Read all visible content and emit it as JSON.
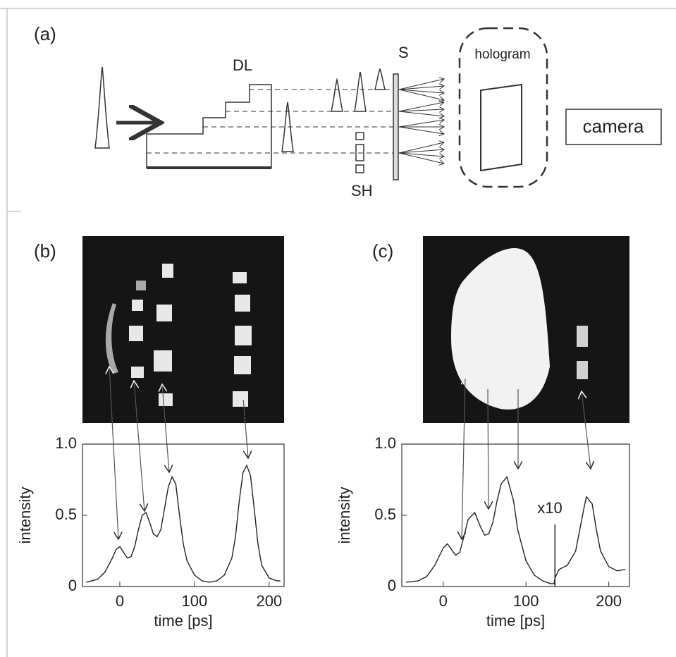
{
  "diagram": {
    "label": "(a)",
    "delay_line": "DL",
    "screen": "S",
    "hologram": "hologram",
    "camera": "camera",
    "shutter": "SH"
  },
  "panel_labels": [
    "(b)",
    "(c)"
  ],
  "chart_data": [
    {
      "type": "line",
      "x_label": "time [ps]",
      "y_label": "intensity",
      "x": [
        -45,
        -30,
        -20,
        -10,
        -5,
        0,
        5,
        10,
        15,
        20,
        25,
        30,
        35,
        40,
        45,
        50,
        55,
        60,
        65,
        70,
        75,
        80,
        85,
        90,
        100,
        110,
        120,
        130,
        140,
        150,
        155,
        160,
        165,
        170,
        175,
        180,
        185,
        190,
        200,
        210,
        215
      ],
      "series": [
        {
          "color": "#222222",
          "values": [
            0.03,
            0.05,
            0.1,
            0.2,
            0.26,
            0.28,
            0.24,
            0.2,
            0.21,
            0.28,
            0.4,
            0.5,
            0.52,
            0.45,
            0.37,
            0.35,
            0.4,
            0.55,
            0.7,
            0.77,
            0.72,
            0.5,
            0.3,
            0.18,
            0.08,
            0.04,
            0.03,
            0.04,
            0.08,
            0.2,
            0.35,
            0.6,
            0.8,
            0.85,
            0.78,
            0.55,
            0.3,
            0.15,
            0.06,
            0.04,
            0.04
          ]
        }
      ],
      "xlim": [
        -50,
        220
      ],
      "xticks": [
        0,
        100,
        200
      ],
      "ylim": [
        0,
        1
      ],
      "yticks": [
        0,
        0.5,
        {
          "value": 1,
          "label": "1.0"
        }
      ]
    },
    {
      "type": "line",
      "x_label": "time [ps]",
      "y_label": "intensity",
      "annotation": "x10",
      "x": [
        -45,
        -30,
        -20,
        -10,
        0,
        5,
        10,
        15,
        20,
        25,
        30,
        38,
        45,
        50,
        55,
        60,
        65,
        70,
        77,
        85,
        90,
        100,
        110,
        120,
        130,
        134,
        135,
        140,
        150,
        160,
        165,
        170,
        173,
        180,
        185,
        190,
        200,
        210,
        220
      ],
      "series": [
        {
          "color": "#222222",
          "values": [
            0.03,
            0.04,
            0.07,
            0.15,
            0.27,
            0.3,
            0.26,
            0.22,
            0.24,
            0.35,
            0.47,
            0.52,
            0.42,
            0.36,
            0.37,
            0.45,
            0.6,
            0.72,
            0.77,
            0.6,
            0.4,
            0.18,
            0.08,
            0.04,
            0.02,
            0.02,
            0.06,
            0.12,
            0.15,
            0.25,
            0.4,
            0.55,
            0.63,
            0.58,
            0.4,
            0.25,
            0.14,
            0.11,
            0.12
          ]
        }
      ],
      "xlim": [
        -50,
        225
      ],
      "xticks": [
        0,
        100,
        200
      ],
      "ylim": [
        0,
        1
      ],
      "yticks": [
        0,
        0.5,
        {
          "value": 1,
          "label": "1.0"
        }
      ]
    }
  ]
}
